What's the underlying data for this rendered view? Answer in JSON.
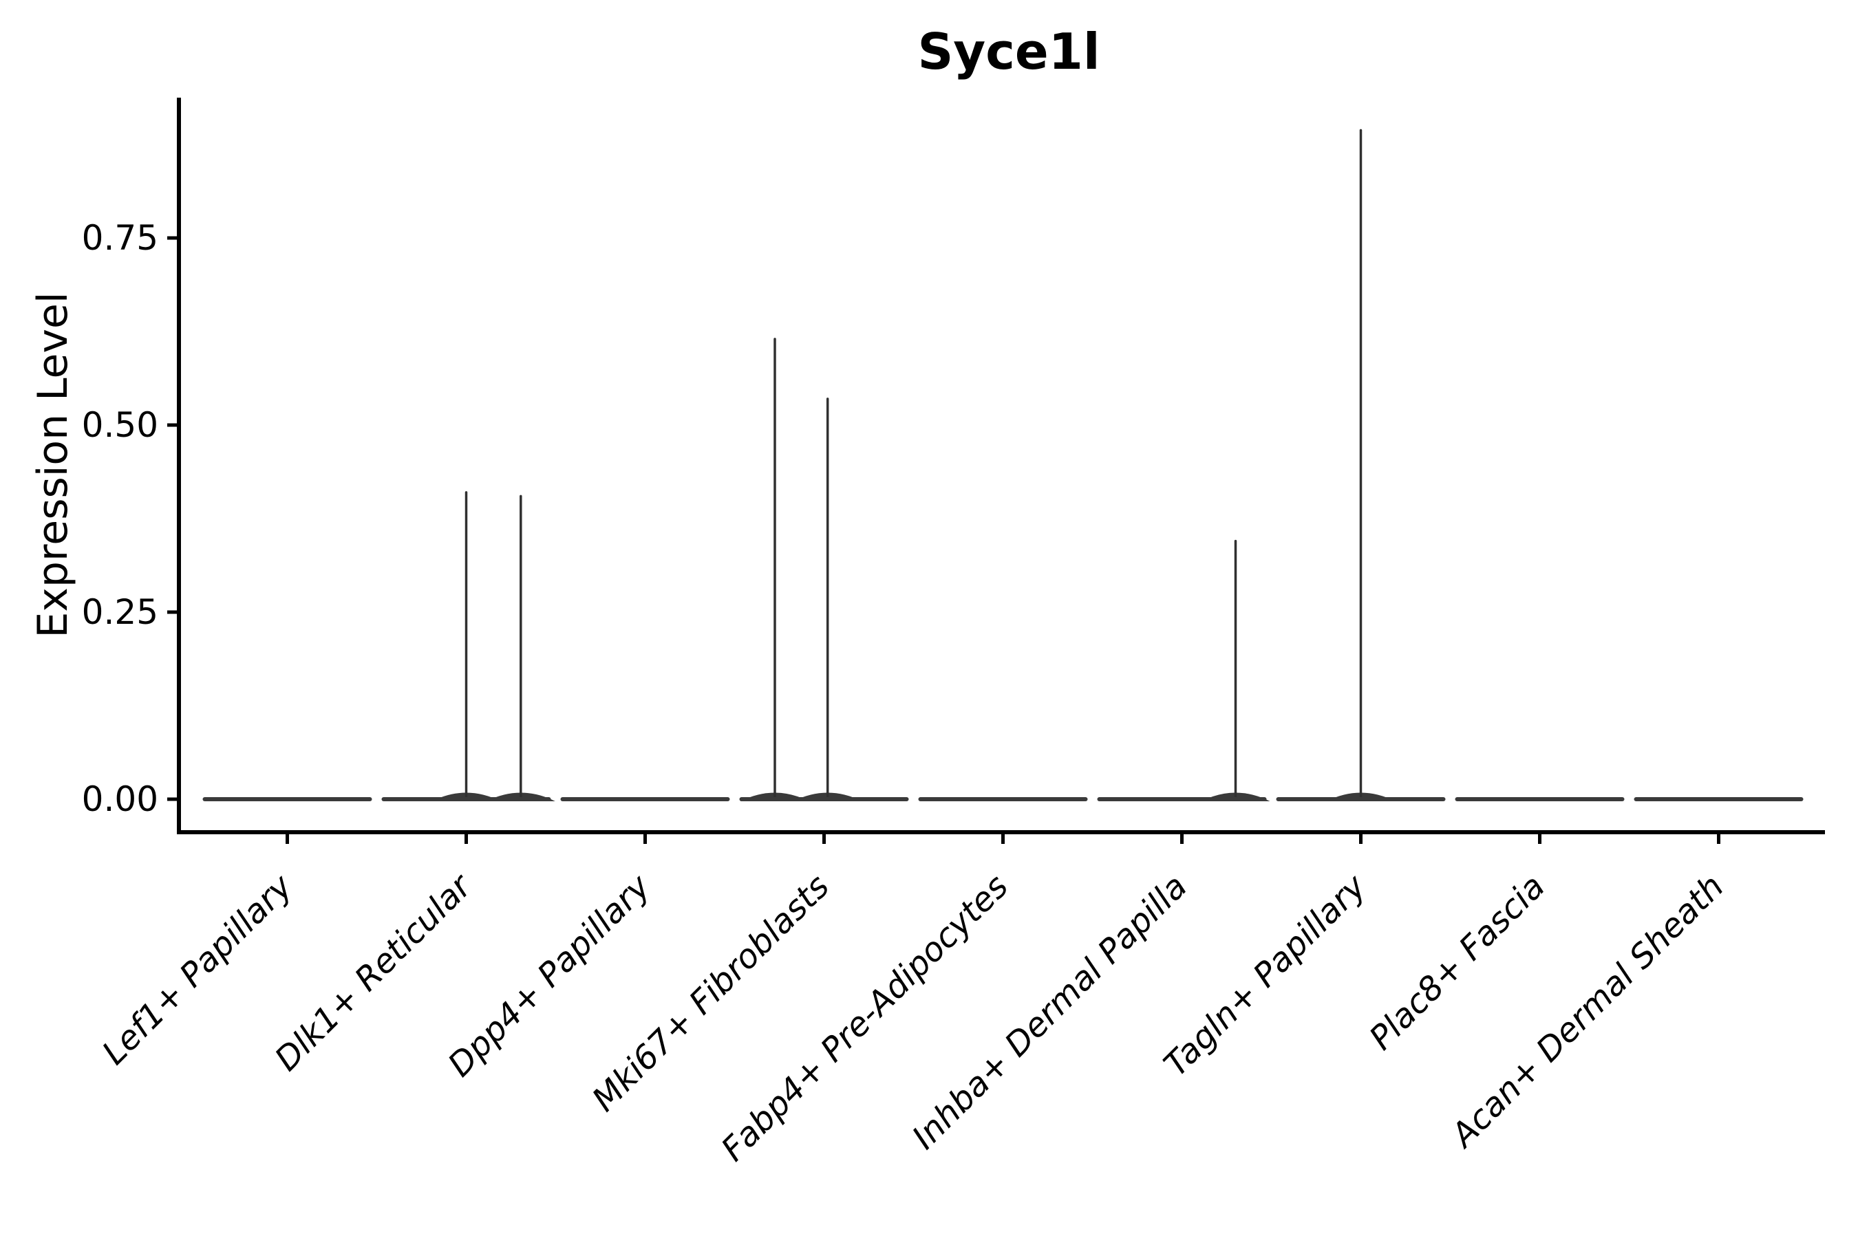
{
  "chart_data": {
    "type": "violin",
    "title": "Syce1l",
    "xlabel": "",
    "ylabel": "Expression Level",
    "grid": false,
    "legend": "none",
    "background": "#ffffff",
    "categories": [
      "Lef1+ Papillary",
      "Dlk1+ Reticular",
      "Dpp4+ Papillary",
      "Mki67+ Fibroblasts",
      "Fabp4+ Pre-Adipocytes",
      "Inhba+ Dermal Papilla",
      "Tagln+ Papillary",
      "Plac8+ Fascia",
      "Acan+ Dermal Sheath"
    ],
    "y_ticks": [
      {
        "label": "0.00",
        "value": 0.0
      },
      {
        "label": "0.25",
        "value": 0.25
      },
      {
        "label": "0.50",
        "value": 0.5
      },
      {
        "label": "0.75",
        "value": 0.75
      }
    ],
    "ylim": [
      0,
      0.9375
    ],
    "x_label_rotation_deg": 45,
    "x_label_style": "italic",
    "style": {
      "violin_color": "#3a3a3a",
      "spike_color": "#303030",
      "axis_color": "#000000",
      "text_color": "#000000"
    },
    "violins": [
      {
        "category": "Lef1+ Papillary",
        "baseline_value": 0.0,
        "spikes": []
      },
      {
        "category": "Dlk1+ Reticular",
        "baseline_value": 0.0,
        "spikes": [
          {
            "offset": 0.0,
            "value": 0.41
          },
          {
            "offset": 0.305,
            "value": 0.405
          }
        ]
      },
      {
        "category": "Dpp4+ Papillary",
        "baseline_value": 0.0,
        "spikes": []
      },
      {
        "category": "Mki67+ Fibroblasts",
        "baseline_value": 0.0,
        "spikes": [
          {
            "offset": -0.275,
            "value": 0.615
          },
          {
            "offset": 0.02,
            "value": 0.535
          }
        ]
      },
      {
        "category": "Fabp4+ Pre-Adipocytes",
        "baseline_value": 0.0,
        "spikes": []
      },
      {
        "category": "Inhba+ Dermal Papilla",
        "baseline_value": 0.0,
        "spikes": [
          {
            "offset": 0.3,
            "value": 0.345
          }
        ]
      },
      {
        "category": "Tagln+ Papillary",
        "baseline_value": 0.0,
        "spikes": [
          {
            "offset": 0.0,
            "value": 0.894
          }
        ]
      },
      {
        "category": "Plac8+ Fascia",
        "baseline_value": 0.0,
        "spikes": []
      },
      {
        "category": "Acan+ Dermal Sheath",
        "baseline_value": 0.0,
        "spikes": []
      }
    ]
  }
}
